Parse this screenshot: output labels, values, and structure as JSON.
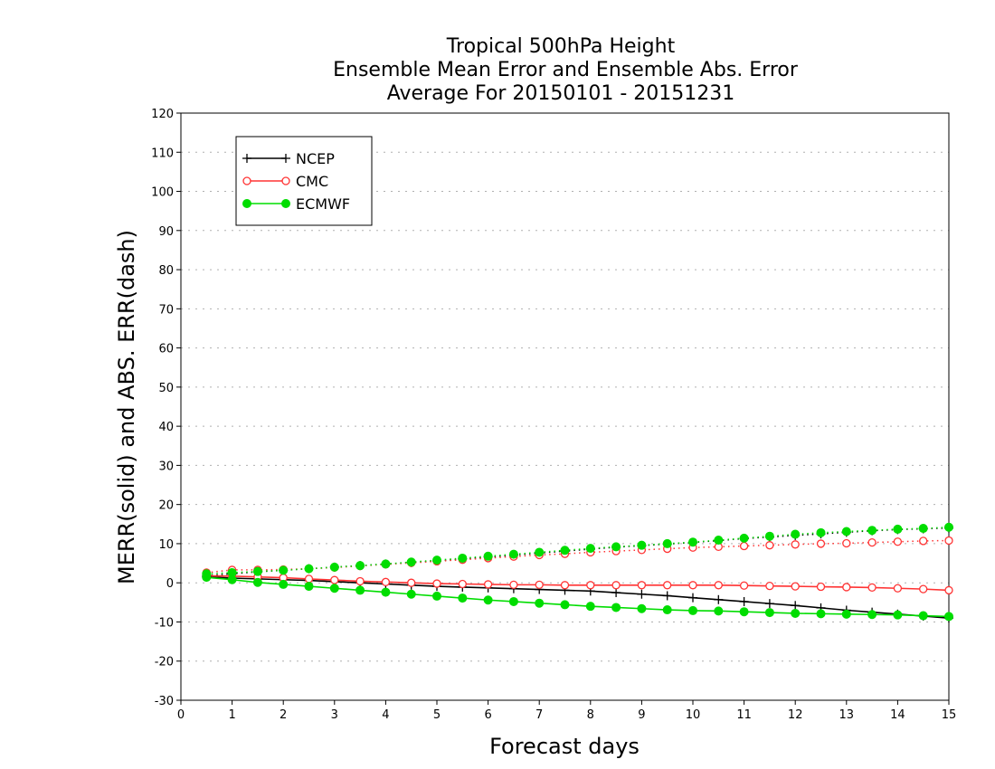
{
  "chart_data": {
    "type": "line",
    "title_lines": [
      "Tropical 500hPa Height",
      "Ensemble Mean Error and Ensemble Abs. Error",
      "Average For 20150101 - 20151231"
    ],
    "xlabel": "Forecast days",
    "ylabel": "MERR(solid) and ABS. ERR(dash)",
    "xlim": [
      0,
      15
    ],
    "ylim": [
      -30,
      120
    ],
    "x_ticks": [
      "0",
      "1",
      "2",
      "3",
      "4",
      "5",
      "6",
      "7",
      "8",
      "9",
      "10",
      "11",
      "12",
      "13",
      "14",
      "15"
    ],
    "y_ticks": [
      "-30",
      "-20",
      "-10",
      "0",
      "10",
      "20",
      "30",
      "40",
      "50",
      "60",
      "70",
      "80",
      "90",
      "100",
      "110",
      "120"
    ],
    "grid": "horizontal dotted",
    "legend_position": "top-left",
    "x": [
      0.5,
      1,
      1.5,
      2,
      2.5,
      3,
      3.5,
      4,
      4.5,
      5,
      5.5,
      6,
      6.5,
      7,
      7.5,
      8,
      8.5,
      9,
      9.5,
      10,
      10.5,
      11,
      11.5,
      12,
      12.5,
      13,
      13.5,
      14,
      14.5,
      15
    ],
    "series": [
      {
        "name": "NCEP",
        "color": "#000000",
        "marker": "plus",
        "merr": [
          1.5,
          1.2,
          1,
          0.8,
          0.6,
          0.3,
          0,
          -0.3,
          -0.6,
          -0.9,
          -1.1,
          -1.3,
          -1.5,
          -1.7,
          -1.9,
          -2.1,
          -2.5,
          -2.9,
          -3.3,
          -3.8,
          -4.3,
          -4.8,
          -5.3,
          -5.8,
          -6.4,
          -7,
          -7.5,
          -8,
          -8.5,
          -9
        ],
        "abs_err": [
          1.8,
          2.3,
          2.8,
          3.2,
          3.6,
          4,
          4.4,
          4.8,
          5.2,
          5.6,
          6.1,
          6.6,
          7.1,
          7.6,
          8.1,
          8.6,
          9.1,
          9.5,
          9.9,
          10.3,
          10.8,
          11.3,
          11.7,
          12.1,
          12.5,
          12.9,
          13.3,
          13.6,
          13.8,
          14
        ]
      },
      {
        "name": "CMC",
        "color": "#ff3333",
        "marker": "open-circle",
        "merr": [
          1.8,
          1.7,
          1.5,
          1.3,
          1,
          0.7,
          0.4,
          0.2,
          0,
          -0.2,
          -0.3,
          -0.4,
          -0.5,
          -0.5,
          -0.6,
          -0.6,
          -0.6,
          -0.6,
          -0.6,
          -0.6,
          -0.6,
          -0.7,
          -0.8,
          -0.9,
          -1,
          -1.1,
          -1.2,
          -1.4,
          -1.6,
          -1.9
        ],
        "abs_err": [
          2.6,
          3.3,
          3.3,
          3.4,
          3.6,
          3.9,
          4.3,
          4.7,
          5.1,
          5.5,
          5.9,
          6.3,
          6.7,
          7.1,
          7.4,
          7.8,
          8.1,
          8.4,
          8.7,
          9,
          9.2,
          9.4,
          9.6,
          9.8,
          10,
          10.1,
          10.3,
          10.5,
          10.7,
          10.8
        ]
      },
      {
        "name": "ECMWF",
        "color": "#00dd00",
        "marker": "filled-circle",
        "merr": [
          1.4,
          0.8,
          0.1,
          -0.4,
          -0.9,
          -1.4,
          -1.9,
          -2.4,
          -2.9,
          -3.4,
          -3.9,
          -4.4,
          -4.8,
          -5.2,
          -5.6,
          -6,
          -6.3,
          -6.6,
          -6.9,
          -7.1,
          -7.2,
          -7.4,
          -7.6,
          -7.8,
          -7.9,
          -8,
          -8.1,
          -8.2,
          -8.4,
          -8.6
        ],
        "abs_err": [
          2.3,
          2.6,
          2.9,
          3.2,
          3.6,
          4,
          4.4,
          4.8,
          5.3,
          5.8,
          6.3,
          6.8,
          7.3,
          7.8,
          8.3,
          8.8,
          9.2,
          9.6,
          10,
          10.4,
          10.9,
          11.4,
          11.9,
          12.4,
          12.8,
          13.1,
          13.4,
          13.7,
          13.9,
          14.2
        ]
      }
    ]
  }
}
